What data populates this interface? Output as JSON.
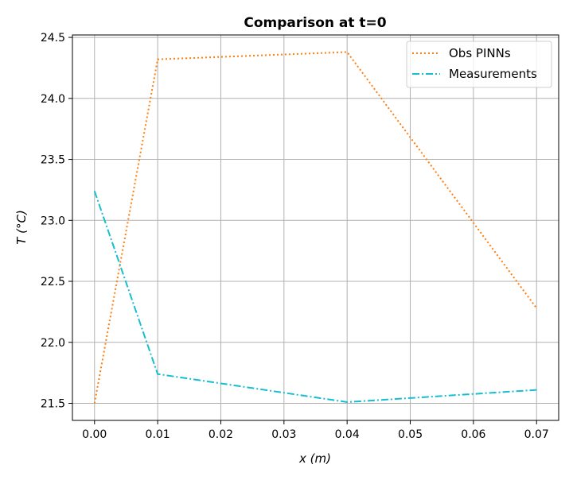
{
  "chart_data": {
    "type": "line",
    "title": "Comparison at t=0",
    "xlabel": "x (m)",
    "ylabel": "T (°C)",
    "xlim": [
      -0.0035,
      0.0735
    ],
    "ylim": [
      21.36,
      24.52
    ],
    "x_ticks": [
      0.0,
      0.01,
      0.02,
      0.03,
      0.04,
      0.05,
      0.06,
      0.07
    ],
    "x_tick_labels": [
      "0.00",
      "0.01",
      "0.02",
      "0.03",
      "0.04",
      "0.05",
      "0.06",
      "0.07"
    ],
    "y_ticks": [
      21.5,
      22.0,
      22.5,
      23.0,
      23.5,
      24.0,
      24.5
    ],
    "y_tick_labels": [
      "21.5",
      "22.0",
      "22.5",
      "23.0",
      "23.5",
      "24.0",
      "24.5"
    ],
    "grid": true,
    "legend_position": "top-right",
    "series": [
      {
        "name": "Obs PINNs",
        "color": "#ff7f0e",
        "line_style": "dotted",
        "x": [
          0.0,
          0.01,
          0.04,
          0.07
        ],
        "y": [
          21.5,
          24.32,
          24.38,
          22.28
        ]
      },
      {
        "name": "Measurements",
        "color": "#17becf",
        "line_style": "dashdot",
        "x": [
          0.0,
          0.01,
          0.04,
          0.07
        ],
        "y": [
          23.24,
          21.74,
          21.51,
          21.61
        ]
      }
    ]
  }
}
